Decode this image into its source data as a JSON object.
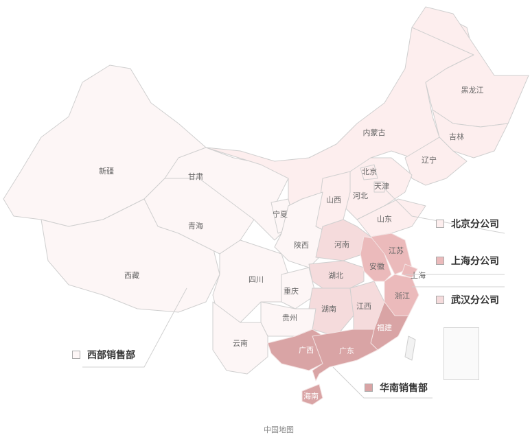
{
  "map": {
    "footer": "中国地图",
    "groups": {
      "west": {
        "label": "西部销售部",
        "color": "#fdf6f6"
      },
      "beijing": {
        "label": "北京分公司",
        "color": "#fdeeee"
      },
      "shanghai": {
        "label": "上海分公司",
        "color": "#ebbabb"
      },
      "wuhan": {
        "label": "武汉分公司",
        "color": "#f5dbdc"
      },
      "south": {
        "label": "华南销售部",
        "color": "#d9a4a5"
      }
    },
    "provinces": {
      "xinjiang": "新疆",
      "xizang": "西藏",
      "qinghai": "青海",
      "gansu": "甘肃",
      "ningxia": "宁夏",
      "neimenggu": "内蒙古",
      "heilongjiang": "黑龙江",
      "jilin": "吉林",
      "liaoning": "辽宁",
      "hebei": "河北",
      "beijing": "北京",
      "tianjin": "天津",
      "shanxi": "山西",
      "shandong": "山东",
      "shaanxi": "陕西",
      "henan": "河南",
      "sichuan": "四川",
      "chongqing": "重庆",
      "hubei": "湖北",
      "hunan": "湖南",
      "guizhou": "贵州",
      "yunnan": "云南",
      "jiangxi": "江西",
      "anhui": "安徽",
      "jiangsu": "江苏",
      "shanghai": "上海",
      "zhejiang": "浙江",
      "fujian": "福建",
      "guangxi": "广西",
      "guangdong": "广东",
      "hainan": "海南"
    },
    "taiwan_color": "#f2f2f2"
  }
}
